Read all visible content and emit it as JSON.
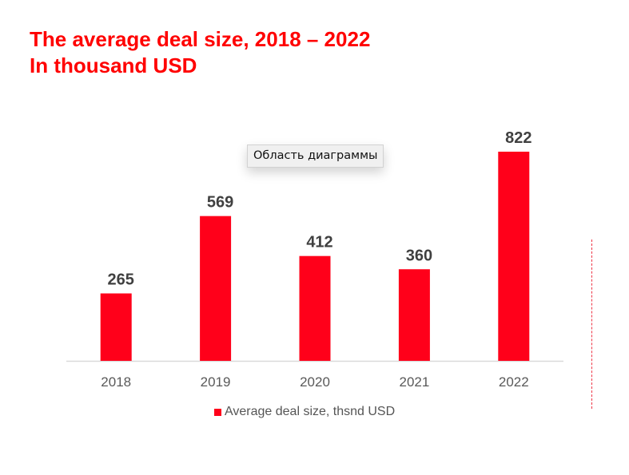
{
  "title": {
    "line1": "The average deal size, 2018 – 2022",
    "line2": "In thousand USD"
  },
  "tooltip": "Область диаграммы",
  "colors": {
    "accent": "#ff0000",
    "bar": "#ff001a",
    "label": "#404040",
    "tick": "#595959",
    "axis": "#d9d9d9"
  },
  "chart_data": {
    "type": "bar",
    "title": "The average deal size, 2018 – 2022 In thousand USD",
    "categories": [
      "2018",
      "2019",
      "2020",
      "2021",
      "2022"
    ],
    "series": [
      {
        "name": "Average deal size, thsnd USD",
        "values": [
          265,
          569,
          412,
          360,
          822
        ]
      }
    ],
    "xlabel": "",
    "ylabel": "",
    "ylim": [
      0,
      822
    ],
    "grid": false,
    "y_axis_visible": false,
    "data_labels": true,
    "legend": {
      "position": "bottom",
      "entries": [
        "Average deal size, thsnd USD"
      ]
    }
  }
}
